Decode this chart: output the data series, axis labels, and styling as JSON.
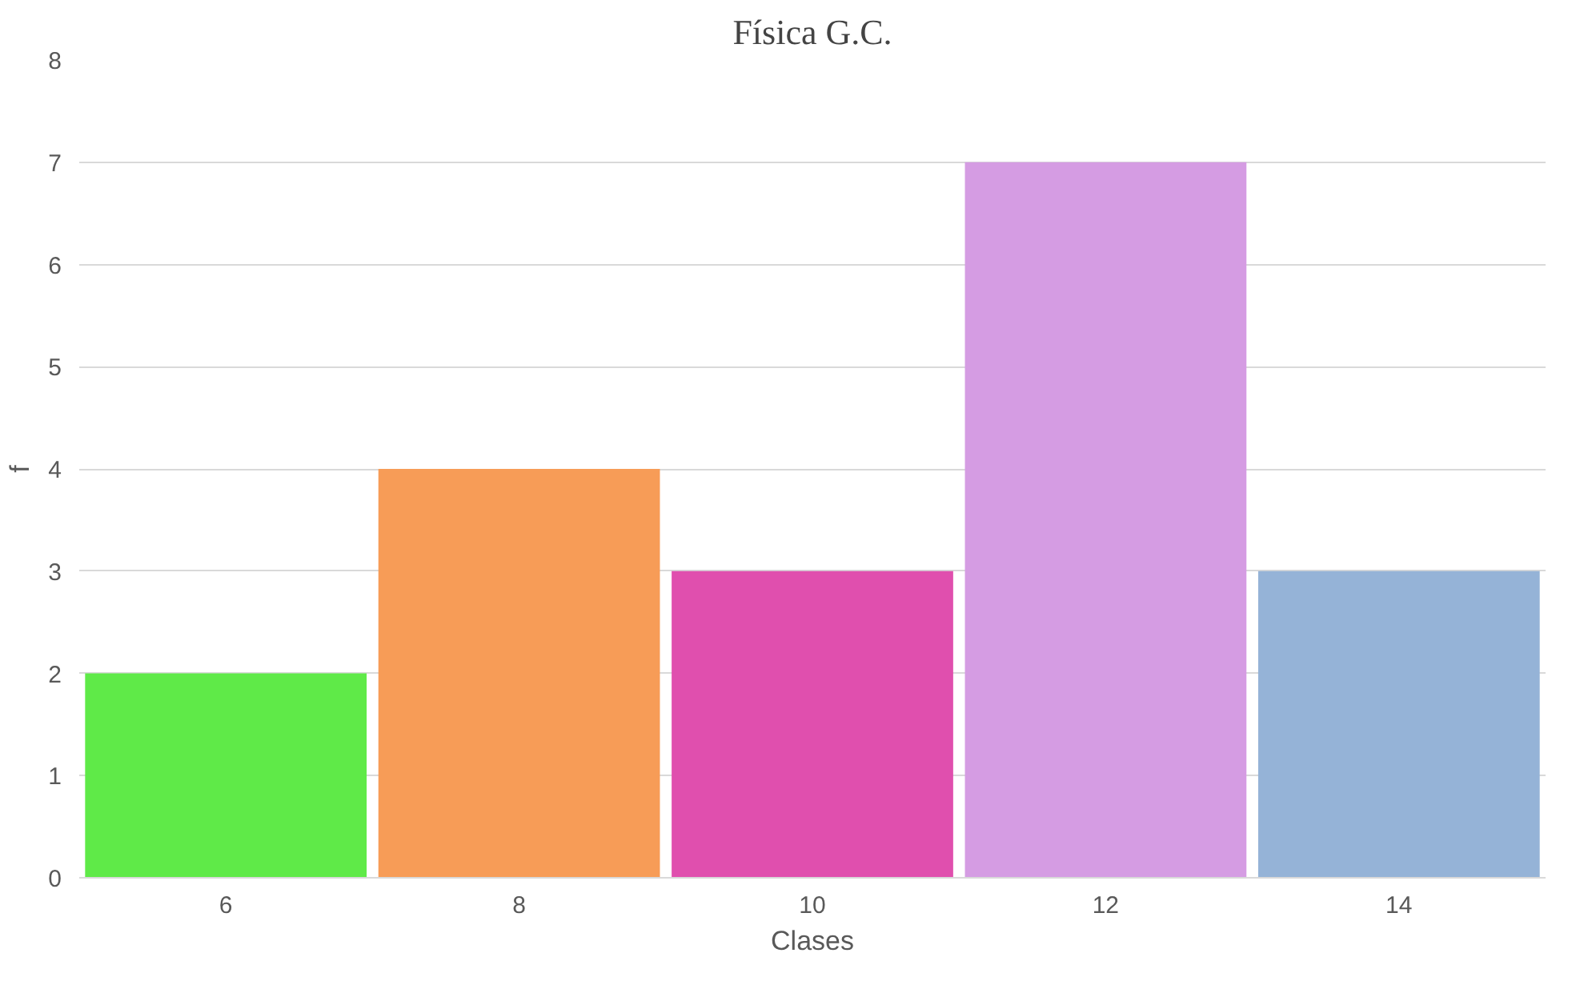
{
  "chart_data": {
    "type": "bar",
    "title": "Física G.C.",
    "xlabel": "Clases",
    "ylabel": "f",
    "categories": [
      "6",
      "8",
      "10",
      "12",
      "14"
    ],
    "values": [
      2,
      4,
      3,
      7,
      3
    ],
    "colors": [
      "#5fea48",
      "#f79c57",
      "#e04fae",
      "#d59ce3",
      "#95b3d7"
    ],
    "ylim": [
      0,
      8
    ],
    "yticks": [
      0,
      1,
      2,
      3,
      4,
      5,
      6,
      7,
      8
    ],
    "grid": "y"
  }
}
